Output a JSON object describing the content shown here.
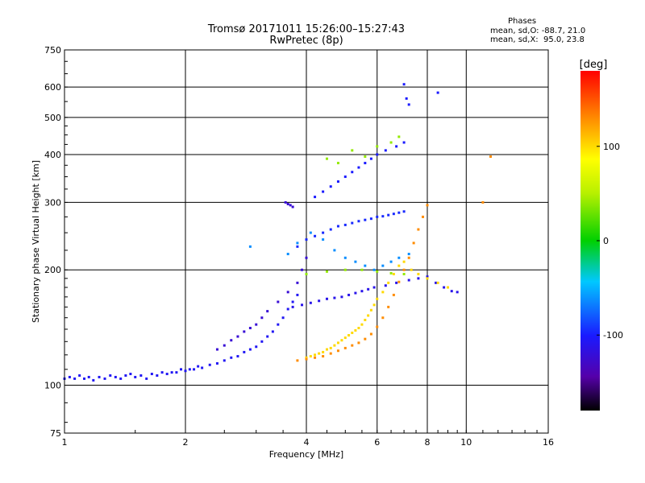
{
  "chart_data": {
    "type": "scatter",
    "title": "Tromsø 20171011 15:26:00–15:27:43",
    "subtitle": "RwPretec (8p)",
    "phase_box": {
      "heading": "Phases",
      "line_o": "mean, sd,O: -88.7, 21.0",
      "line_x": "mean, sd,X:  95.0, 23.8"
    },
    "xlabel": "Frequency [MHz]",
    "ylabel": "Stationary phase Virtual Height [km]",
    "x_scale": "log",
    "y_scale": "log",
    "xlim": [
      1,
      16
    ],
    "ylim": [
      75,
      750
    ],
    "x_ticks": [
      1,
      2,
      4,
      6,
      8,
      10,
      16
    ],
    "y_ticks": [
      75,
      100,
      200,
      300,
      400,
      500,
      600,
      750
    ],
    "grid": true,
    "colorbar": {
      "label": "[deg]",
      "range": [
        -180,
        180
      ],
      "ticks": [
        100,
        0,
        -100
      ]
    },
    "series": [
      {
        "phase": -105,
        "points": [
          [
            1.0,
            104
          ],
          [
            1.03,
            105
          ],
          [
            1.06,
            104
          ],
          [
            1.09,
            106
          ],
          [
            1.12,
            104
          ],
          [
            1.15,
            105
          ],
          [
            1.18,
            103
          ],
          [
            1.22,
            105
          ],
          [
            1.26,
            104
          ],
          [
            1.3,
            106
          ],
          [
            1.34,
            105
          ],
          [
            1.38,
            104
          ],
          [
            1.42,
            106
          ],
          [
            1.46,
            107
          ],
          [
            1.5,
            105
          ],
          [
            1.55,
            106
          ],
          [
            1.6,
            104
          ],
          [
            1.65,
            107
          ],
          [
            1.7,
            106
          ],
          [
            1.75,
            108
          ],
          [
            1.8,
            107
          ],
          [
            1.85,
            108
          ],
          [
            1.9,
            108
          ],
          [
            1.95,
            110
          ],
          [
            2.0,
            109
          ],
          [
            2.05,
            110
          ],
          [
            2.1,
            110
          ],
          [
            2.15,
            112
          ],
          [
            2.2,
            111
          ],
          [
            2.3,
            113
          ],
          [
            2.4,
            114
          ],
          [
            2.5,
            116
          ],
          [
            2.6,
            118
          ],
          [
            2.7,
            119
          ],
          [
            2.8,
            122
          ],
          [
            2.9,
            124
          ],
          [
            3.0,
            126
          ],
          [
            3.1,
            130
          ],
          [
            3.2,
            134
          ],
          [
            3.3,
            138
          ],
          [
            3.4,
            144
          ],
          [
            3.5,
            150
          ],
          [
            3.6,
            158
          ],
          [
            3.7,
            165
          ],
          [
            3.8,
            172
          ]
        ]
      },
      {
        "phase": -120,
        "points": [
          [
            2.4,
            124
          ],
          [
            2.5,
            127
          ],
          [
            2.6,
            131
          ],
          [
            2.7,
            134
          ],
          [
            2.8,
            138
          ],
          [
            2.9,
            141
          ],
          [
            3.0,
            144
          ],
          [
            3.1,
            150
          ],
          [
            3.2,
            156
          ],
          [
            3.4,
            165
          ],
          [
            3.6,
            175
          ],
          [
            3.8,
            185
          ],
          [
            3.9,
            200
          ],
          [
            4.0,
            215
          ],
          [
            3.55,
            300
          ],
          [
            3.6,
            297
          ],
          [
            3.65,
            295
          ],
          [
            3.7,
            292
          ]
        ]
      },
      {
        "phase": -95,
        "points": [
          [
            3.8,
            230
          ],
          [
            4.0,
            240
          ],
          [
            4.2,
            245
          ],
          [
            4.4,
            250
          ],
          [
            4.6,
            255
          ],
          [
            4.8,
            260
          ],
          [
            5.0,
            262
          ],
          [
            5.2,
            265
          ],
          [
            5.4,
            268
          ],
          [
            5.6,
            270
          ],
          [
            5.8,
            272
          ],
          [
            6.0,
            275
          ],
          [
            6.2,
            276
          ],
          [
            6.4,
            278
          ],
          [
            6.6,
            280
          ],
          [
            6.8,
            282
          ],
          [
            7.0,
            284
          ]
        ]
      },
      {
        "phase": -110,
        "points": [
          [
            3.7,
            160
          ],
          [
            3.9,
            162
          ],
          [
            4.1,
            164
          ],
          [
            4.3,
            166
          ],
          [
            4.5,
            168
          ],
          [
            4.7,
            169
          ],
          [
            4.9,
            170
          ],
          [
            5.1,
            172
          ],
          [
            5.3,
            174
          ],
          [
            5.5,
            176
          ],
          [
            5.7,
            178
          ],
          [
            5.9,
            180
          ],
          [
            6.3,
            182
          ],
          [
            6.7,
            185
          ],
          [
            7.2,
            188
          ],
          [
            7.6,
            190
          ],
          [
            8.0,
            192
          ],
          [
            8.4,
            185
          ],
          [
            8.8,
            180
          ],
          [
            9.2,
            176
          ],
          [
            9.5,
            175
          ]
        ]
      },
      {
        "phase": -100,
        "points": [
          [
            4.2,
            310
          ],
          [
            4.4,
            320
          ],
          [
            4.6,
            330
          ],
          [
            4.8,
            340
          ],
          [
            5.0,
            350
          ],
          [
            5.2,
            360
          ],
          [
            5.4,
            370
          ],
          [
            5.6,
            380
          ],
          [
            5.8,
            390
          ],
          [
            6.0,
            400
          ],
          [
            6.3,
            410
          ],
          [
            6.7,
            420
          ],
          [
            7.0,
            430
          ],
          [
            7.0,
            610
          ],
          [
            7.1,
            560
          ],
          [
            7.2,
            540
          ],
          [
            8.5,
            580
          ]
        ]
      },
      {
        "phase": 100,
        "points": [
          [
            4.0,
            118
          ],
          [
            4.1,
            119
          ],
          [
            4.2,
            120
          ],
          [
            4.3,
            121
          ],
          [
            4.4,
            122
          ],
          [
            4.5,
            124
          ],
          [
            4.6,
            125
          ],
          [
            4.7,
            127
          ],
          [
            4.8,
            129
          ],
          [
            4.9,
            131
          ],
          [
            5.0,
            133
          ],
          [
            5.1,
            135
          ],
          [
            5.2,
            137
          ],
          [
            5.3,
            139
          ],
          [
            5.4,
            141
          ],
          [
            5.5,
            144
          ],
          [
            5.6,
            148
          ],
          [
            5.7,
            152
          ],
          [
            5.8,
            157
          ],
          [
            5.9,
            162
          ],
          [
            6.0,
            168
          ],
          [
            6.2,
            175
          ],
          [
            6.4,
            185
          ],
          [
            6.6,
            195
          ],
          [
            6.8,
            205
          ],
          [
            7.0,
            210
          ],
          [
            7.3,
            200
          ],
          [
            7.6,
            195
          ],
          [
            8.0,
            190
          ],
          [
            8.5,
            185
          ],
          [
            9.0,
            180
          ]
        ]
      },
      {
        "phase": 130,
        "points": [
          [
            3.8,
            116
          ],
          [
            4.0,
            117
          ],
          [
            4.2,
            118
          ],
          [
            4.4,
            119
          ],
          [
            4.6,
            121
          ],
          [
            4.8,
            123
          ],
          [
            5.0,
            125
          ],
          [
            5.2,
            127
          ],
          [
            5.4,
            129
          ],
          [
            5.6,
            132
          ],
          [
            5.8,
            136
          ],
          [
            6.0,
            142
          ],
          [
            6.2,
            150
          ],
          [
            6.4,
            160
          ],
          [
            6.6,
            172
          ],
          [
            6.8,
            186
          ],
          [
            7.0,
            200
          ],
          [
            7.2,
            215
          ],
          [
            7.4,
            235
          ],
          [
            7.6,
            255
          ],
          [
            7.8,
            275
          ],
          [
            8.0,
            295
          ],
          [
            11.0,
            300
          ],
          [
            11.5,
            395
          ]
        ]
      },
      {
        "phase": 40,
        "points": [
          [
            4.5,
            390
          ],
          [
            4.8,
            380
          ],
          [
            5.2,
            410
          ],
          [
            5.6,
            395
          ],
          [
            6.0,
            420
          ],
          [
            6.5,
            430
          ],
          [
            6.8,
            445
          ],
          [
            4.0,
            195
          ],
          [
            4.5,
            198
          ],
          [
            5.0,
            200
          ],
          [
            5.5,
            200
          ],
          [
            6.0,
            198
          ],
          [
            6.5,
            196
          ],
          [
            7.0,
            195
          ]
        ]
      },
      {
        "phase": -60,
        "points": [
          [
            3.6,
            220
          ],
          [
            3.8,
            235
          ],
          [
            4.1,
            250
          ],
          [
            4.4,
            240
          ],
          [
            4.7,
            225
          ],
          [
            5.0,
            215
          ],
          [
            5.3,
            210
          ],
          [
            5.6,
            205
          ],
          [
            5.9,
            200
          ],
          [
            6.2,
            205
          ],
          [
            6.5,
            210
          ],
          [
            6.8,
            215
          ],
          [
            7.2,
            220
          ],
          [
            2.9,
            230
          ]
        ]
      }
    ]
  }
}
